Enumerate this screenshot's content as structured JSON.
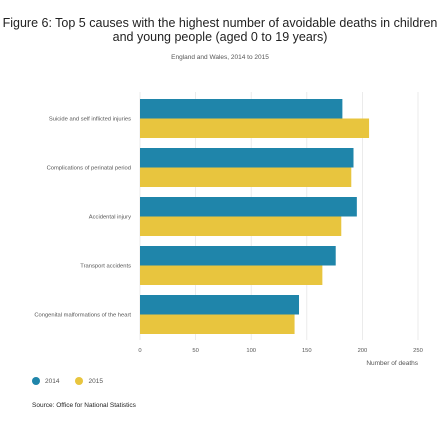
{
  "chart_data": {
    "type": "bar",
    "orientation": "horizontal",
    "title": "Figure 6: Top 5 causes with the highest number of avoidable deaths in children and young people (aged 0 to 19 years)",
    "subtitle": "England and Wales, 2014 to 2015",
    "categories": [
      "Suicide and self inflicted injuries",
      "Complications of perinatal period",
      "Accidental injury",
      "Transport accidents",
      "Congenital malformations of the heart"
    ],
    "series": [
      {
        "name": "2014",
        "color": "#1f85aa",
        "values": [
          182,
          192,
          195,
          176,
          143
        ]
      },
      {
        "name": "2015",
        "color": "#e8c53e",
        "values": [
          206,
          190,
          181,
          164,
          139
        ]
      }
    ],
    "xlabel": "Number of deaths",
    "xlim": [
      0,
      250
    ],
    "xticks": [
      0,
      50,
      100,
      150,
      200,
      250
    ],
    "grid": true,
    "legend_position": "bottom-left"
  },
  "source": "Source: Office for National Statistics"
}
